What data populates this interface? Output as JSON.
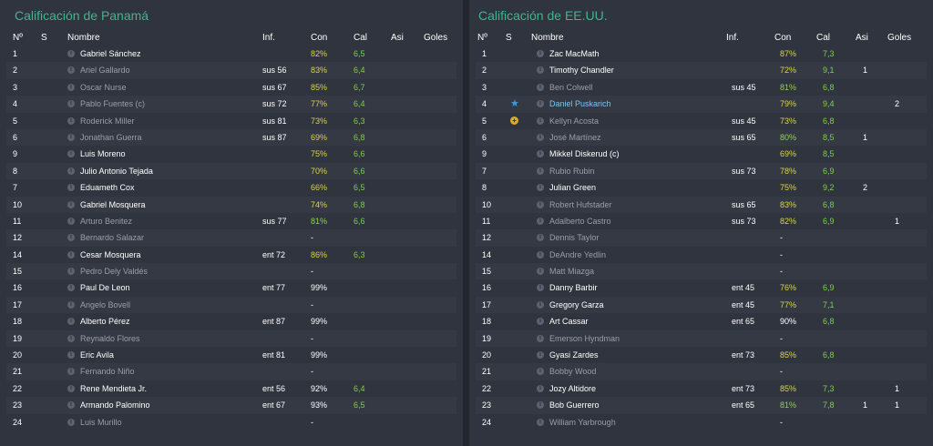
{
  "columns": {
    "num": "Nº",
    "s": "S",
    "name": "Nombre",
    "inf": "Inf.",
    "con": "Con",
    "cal": "Cal",
    "asi": "Asi",
    "goles": "Goles"
  },
  "left": {
    "title": "Calificación de Panamá",
    "rows": [
      {
        "num": "1",
        "name": "Gabriel Sánchez",
        "status": "active",
        "inf": "",
        "con": "82%",
        "con_color": "yellow",
        "cal": "6,5",
        "asi": "",
        "goles": ""
      },
      {
        "num": "2",
        "name": "Ariel Gallardo",
        "status": "bench",
        "inf": "sus 56",
        "con": "83%",
        "con_color": "yellow",
        "cal": "6,4",
        "asi": "",
        "goles": ""
      },
      {
        "num": "3",
        "name": "Oscar Nurse",
        "status": "bench",
        "inf": "sus 67",
        "con": "85%",
        "con_color": "yellow",
        "cal": "6,7",
        "asi": "",
        "goles": ""
      },
      {
        "num": "4",
        "name": "Pablo Fuentes (c)",
        "status": "bench",
        "inf": "sus 72",
        "con": "77%",
        "con_color": "yellow",
        "cal": "6,4",
        "asi": "",
        "goles": ""
      },
      {
        "num": "5",
        "name": "Roderick Miller",
        "status": "bench",
        "inf": "sus 81",
        "con": "73%",
        "con_color": "yellow",
        "cal": "6,3",
        "asi": "",
        "goles": ""
      },
      {
        "num": "6",
        "name": "Jonathan Guerra",
        "status": "bench",
        "inf": "sus 87",
        "con": "69%",
        "con_color": "yellow",
        "cal": "6,8",
        "asi": "",
        "goles": ""
      },
      {
        "num": "9",
        "name": "Luis Moreno",
        "status": "active",
        "inf": "",
        "con": "75%",
        "con_color": "yellow",
        "cal": "6,6",
        "asi": "",
        "goles": ""
      },
      {
        "num": "8",
        "name": "Julio Antonio Tejada",
        "status": "active",
        "inf": "",
        "con": "70%",
        "con_color": "yellow",
        "cal": "6,6",
        "asi": "",
        "goles": ""
      },
      {
        "num": "7",
        "name": "Eduameth Cox",
        "status": "active",
        "inf": "",
        "con": "66%",
        "con_color": "yellow",
        "cal": "6,5",
        "asi": "",
        "goles": ""
      },
      {
        "num": "10",
        "name": "Gabriel Mosquera",
        "status": "active",
        "inf": "",
        "con": "74%",
        "con_color": "yellow",
        "cal": "6,8",
        "asi": "",
        "goles": ""
      },
      {
        "num": "11",
        "name": "Arturo Benitez",
        "status": "bench",
        "inf": "sus 77",
        "con": "81%",
        "con_color": "green",
        "cal": "6,6",
        "asi": "",
        "goles": ""
      },
      {
        "num": "12",
        "name": "Bernardo Salazar",
        "status": "bench",
        "inf": "",
        "con": "-",
        "con_color": "white",
        "cal": "",
        "asi": "",
        "goles": ""
      },
      {
        "num": "14",
        "name": "Cesar Mosquera",
        "status": "active",
        "inf": "ent 72",
        "con": "86%",
        "con_color": "yellow",
        "cal": "6,3",
        "asi": "",
        "goles": ""
      },
      {
        "num": "15",
        "name": "Pedro Dely Valdés",
        "status": "bench",
        "inf": "",
        "con": "-",
        "con_color": "white",
        "cal": "",
        "asi": "",
        "goles": ""
      },
      {
        "num": "16",
        "name": "Paul De Leon",
        "status": "active",
        "inf": "ent 77",
        "con": "99%",
        "con_color": "white",
        "cal": "",
        "asi": "",
        "goles": ""
      },
      {
        "num": "17",
        "name": "Angelo Bovell",
        "status": "bench",
        "inf": "",
        "con": "-",
        "con_color": "white",
        "cal": "",
        "asi": "",
        "goles": ""
      },
      {
        "num": "18",
        "name": "Alberto Pérez",
        "status": "active",
        "inf": "ent 87",
        "con": "99%",
        "con_color": "white",
        "cal": "",
        "asi": "",
        "goles": ""
      },
      {
        "num": "19",
        "name": "Reynaldo Flores",
        "status": "bench",
        "inf": "",
        "con": "-",
        "con_color": "white",
        "cal": "",
        "asi": "",
        "goles": ""
      },
      {
        "num": "20",
        "name": "Eric Avila",
        "status": "active",
        "inf": "ent 81",
        "con": "99%",
        "con_color": "white",
        "cal": "",
        "asi": "",
        "goles": ""
      },
      {
        "num": "21",
        "name": "Fernando Niño",
        "status": "bench",
        "inf": "",
        "con": "-",
        "con_color": "white",
        "cal": "",
        "asi": "",
        "goles": ""
      },
      {
        "num": "22",
        "name": "Rene Mendieta Jr.",
        "status": "active",
        "inf": "ent 56",
        "con": "92%",
        "con_color": "white",
        "cal": "6,4",
        "asi": "",
        "goles": ""
      },
      {
        "num": "23",
        "name": "Armando Palomino",
        "status": "active",
        "inf": "ent 67",
        "con": "93%",
        "con_color": "white",
        "cal": "6,5",
        "asi": "",
        "goles": ""
      },
      {
        "num": "24",
        "name": "Luis Murillo",
        "status": "bench",
        "inf": "",
        "con": "-",
        "con_color": "white",
        "cal": "",
        "asi": "",
        "goles": ""
      }
    ]
  },
  "right": {
    "title": "Calificación de EE.UU.",
    "rows": [
      {
        "num": "1",
        "name": "Zac MacMath",
        "status": "active",
        "inf": "",
        "con": "87%",
        "con_color": "yellow",
        "cal": "7,3",
        "asi": "",
        "goles": ""
      },
      {
        "num": "2",
        "name": "Timothy Chandler",
        "status": "active",
        "inf": "",
        "con": "72%",
        "con_color": "yellow",
        "cal": "9,1",
        "asi": "1",
        "goles": ""
      },
      {
        "num": "3",
        "name": "Ben Colwell",
        "status": "bench",
        "inf": "sus 45",
        "con": "81%",
        "con_color": "green",
        "cal": "6,8",
        "asi": "",
        "goles": ""
      },
      {
        "num": "4",
        "name": "Daniel Puskarich",
        "status": "highlight",
        "icon": "star-icon",
        "inf": "",
        "con": "79%",
        "con_color": "yellow",
        "cal": "9,4",
        "asi": "",
        "goles": "2"
      },
      {
        "num": "5",
        "name": "Kellyn Acosta",
        "status": "bench",
        "icon": "injury-icon",
        "inf": "sus 45",
        "con": "73%",
        "con_color": "yellow",
        "cal": "6,8",
        "asi": "",
        "goles": ""
      },
      {
        "num": "6",
        "name": "José Martínez",
        "status": "bench",
        "inf": "sus 65",
        "con": "80%",
        "con_color": "green",
        "cal": "8,5",
        "asi": "1",
        "goles": ""
      },
      {
        "num": "9",
        "name": "Mikkel Diskerud (c)",
        "status": "active",
        "inf": "",
        "con": "69%",
        "con_color": "yellow",
        "cal": "8,5",
        "asi": "",
        "goles": ""
      },
      {
        "num": "7",
        "name": "Rubio Rubin",
        "status": "bench",
        "inf": "sus 73",
        "con": "78%",
        "con_color": "yellow",
        "cal": "6,9",
        "asi": "",
        "goles": ""
      },
      {
        "num": "8",
        "name": "Julian Green",
        "status": "active",
        "inf": "",
        "con": "75%",
        "con_color": "yellow",
        "cal": "9,2",
        "asi": "2",
        "goles": ""
      },
      {
        "num": "10",
        "name": "Robert Hufstader",
        "status": "bench",
        "inf": "sus 65",
        "con": "83%",
        "con_color": "yellow",
        "cal": "6,8",
        "asi": "",
        "goles": ""
      },
      {
        "num": "11",
        "name": "Adalberto Castro",
        "status": "bench",
        "inf": "sus 73",
        "con": "82%",
        "con_color": "yellow",
        "cal": "6,9",
        "asi": "",
        "goles": "1"
      },
      {
        "num": "12",
        "name": "Dennis Taylor",
        "status": "bench",
        "inf": "",
        "con": "-",
        "con_color": "white",
        "cal": "",
        "asi": "",
        "goles": ""
      },
      {
        "num": "14",
        "name": "DeAndre Yedlin",
        "status": "bench",
        "inf": "",
        "con": "-",
        "con_color": "white",
        "cal": "",
        "asi": "",
        "goles": ""
      },
      {
        "num": "15",
        "name": "Matt Miazga",
        "status": "bench",
        "inf": "",
        "con": "-",
        "con_color": "white",
        "cal": "",
        "asi": "",
        "goles": ""
      },
      {
        "num": "16",
        "name": "Danny Barbir",
        "status": "active",
        "inf": "ent 45",
        "con": "76%",
        "con_color": "yellow",
        "cal": "6,9",
        "asi": "",
        "goles": ""
      },
      {
        "num": "17",
        "name": "Gregory Garza",
        "status": "active",
        "inf": "ent 45",
        "con": "77%",
        "con_color": "yellow",
        "cal": "7,1",
        "asi": "",
        "goles": ""
      },
      {
        "num": "18",
        "name": "Art Cassar",
        "status": "active",
        "inf": "ent 65",
        "con": "90%",
        "con_color": "white",
        "cal": "6,8",
        "asi": "",
        "goles": ""
      },
      {
        "num": "19",
        "name": "Emerson Hyndman",
        "status": "bench",
        "inf": "",
        "con": "-",
        "con_color": "white",
        "cal": "",
        "asi": "",
        "goles": ""
      },
      {
        "num": "20",
        "name": "Gyasi Zardes",
        "status": "active",
        "inf": "ent 73",
        "con": "85%",
        "con_color": "yellow",
        "cal": "6,8",
        "asi": "",
        "goles": ""
      },
      {
        "num": "21",
        "name": "Bobby Wood",
        "status": "bench",
        "inf": "",
        "con": "-",
        "con_color": "white",
        "cal": "",
        "asi": "",
        "goles": ""
      },
      {
        "num": "22",
        "name": "Jozy Altidore",
        "status": "active",
        "inf": "ent 73",
        "con": "85%",
        "con_color": "yellow",
        "cal": "7,3",
        "asi": "",
        "goles": "1"
      },
      {
        "num": "23",
        "name": "Bob Guerrero",
        "status": "active",
        "inf": "ent 65",
        "con": "81%",
        "con_color": "green",
        "cal": "7,8",
        "asi": "1",
        "goles": "1"
      },
      {
        "num": "24",
        "name": "William Yarbrough",
        "status": "bench",
        "inf": "",
        "con": "-",
        "con_color": "white",
        "cal": "",
        "asi": "",
        "goles": ""
      }
    ]
  },
  "colors": {
    "title": "#3fb58f",
    "panel": "#30343e",
    "con_yellow": "#d8d44a",
    "con_green": "#8fd14f",
    "cal": "#7fce4f",
    "highlight": "#7cc4f2"
  }
}
